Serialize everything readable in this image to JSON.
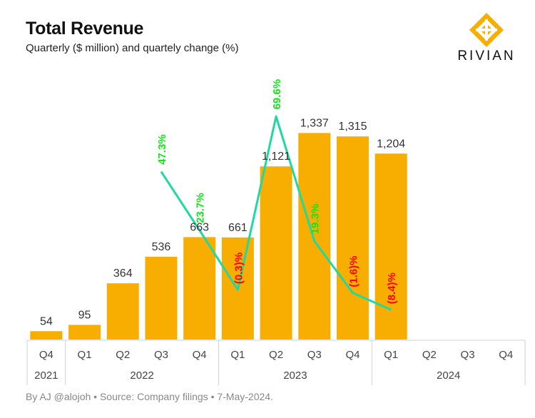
{
  "header": {
    "title": "Total Revenue",
    "subtitle": "Quarterly ($ million) and quartely change (%)",
    "logo_text": "RIVIAN"
  },
  "footer": {
    "source": "By AJ @alojoh • Source: Company filings • 7-May-2024."
  },
  "colors": {
    "bar": "#F8AE00",
    "line": "#21D8A0",
    "positive_label": "#12E51C",
    "negative_label": "#FF0000",
    "logo": "#F8AE00"
  },
  "chart_data": {
    "type": "bar",
    "categories": [
      "Q4",
      "Q1",
      "Q2",
      "Q3",
      "Q4",
      "Q1",
      "Q2",
      "Q3",
      "Q4",
      "Q1",
      "Q2",
      "Q3",
      "Q4"
    ],
    "year_groups": [
      {
        "label": "2021",
        "count": 1
      },
      {
        "label": "2022",
        "count": 4
      },
      {
        "label": "2023",
        "count": 4
      },
      {
        "label": "2024",
        "count": 4
      }
    ],
    "series": [
      {
        "type": "bar",
        "values": [
          54,
          95,
          364,
          536,
          663,
          661,
          1121,
          1337,
          1315,
          1204,
          null,
          null,
          null
        ],
        "labels": [
          "54",
          "95",
          "364",
          "536",
          "663",
          "661",
          "1,121",
          "1,337",
          "1,315",
          "1,204",
          null,
          null,
          null
        ]
      },
      {
        "type": "line",
        "values": [
          null,
          null,
          null,
          47.3,
          23.7,
          -0.3,
          69.6,
          19.3,
          -1.6,
          -8.4,
          null,
          null,
          null
        ],
        "labels": [
          null,
          null,
          null,
          "47.3%",
          "23.7%",
          "(0.3)%",
          "69.6%",
          "19.3%",
          "(1.6)%",
          "(8.4)%",
          null,
          null,
          null
        ]
      }
    ],
    "ylim": [
      0,
      1450
    ],
    "grid": false
  }
}
